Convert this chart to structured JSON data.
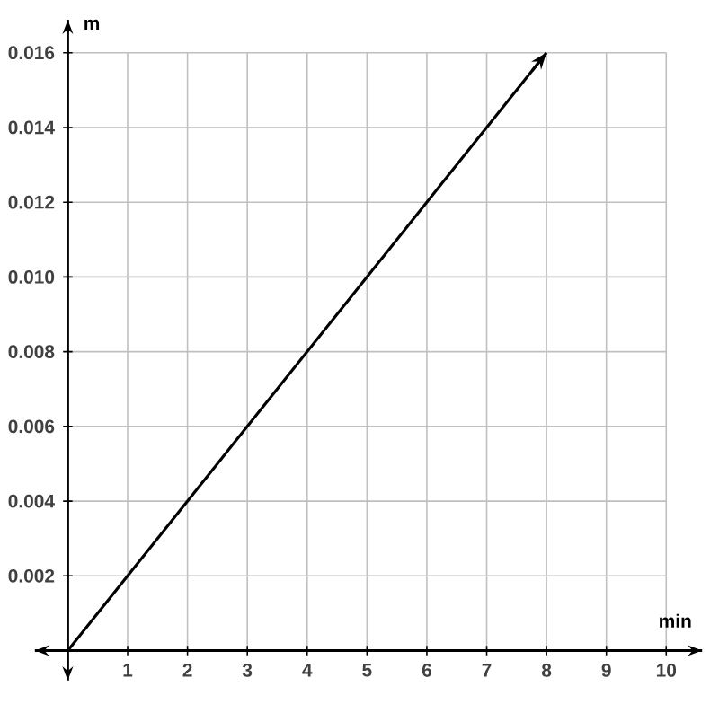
{
  "chart_data": {
    "type": "line",
    "xlabel": "min",
    "ylabel": "m",
    "x": [
      0,
      8
    ],
    "values": [
      0,
      0.016
    ],
    "color": "#000000",
    "marker": "none",
    "line_style": "solid",
    "grid": true,
    "xlim": [
      0,
      10
    ],
    "ylim": [
      0,
      0.016
    ],
    "xticks": [
      1,
      2,
      3,
      4,
      5,
      6,
      7,
      8,
      9,
      10
    ],
    "yticks": [
      {
        "value": 0.002,
        "label": "0.002"
      },
      {
        "value": 0.004,
        "label": "0.004"
      },
      {
        "value": 0.006,
        "label": "0.006"
      },
      {
        "value": 0.008,
        "label": "0.008"
      },
      {
        "value": 0.01,
        "label": "0.010"
      },
      {
        "value": 0.012,
        "label": "0.012"
      },
      {
        "value": 0.014,
        "label": "0.014"
      },
      {
        "value": 0.016,
        "label": "0.016"
      }
    ]
  }
}
